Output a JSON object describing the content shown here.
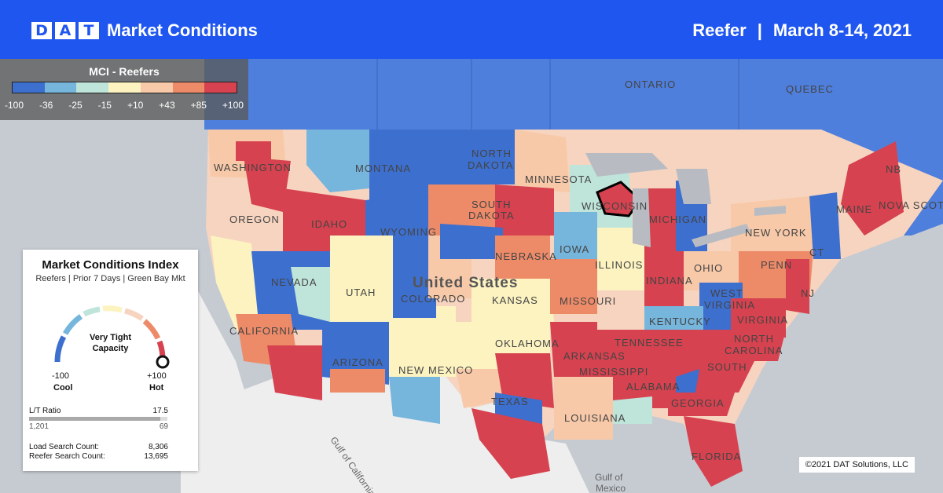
{
  "header": {
    "logo_letters": [
      "D",
      "A",
      "T"
    ],
    "title": "Market Conditions",
    "equipment": "Reefer",
    "separator": "|",
    "date_range": "March 8-14, 2021"
  },
  "legend": {
    "title": "MCI - Reefers",
    "ticks": [
      "-100",
      "-36",
      "-25",
      "-15",
      "+10",
      "+43",
      "+85",
      "+100"
    ],
    "colors": [
      "#3d6fcf",
      "#76b5dc",
      "#bfe4da",
      "#fcf3c1",
      "#f7c9a8",
      "#ed8b69",
      "#d6424f"
    ]
  },
  "card": {
    "title": "Market Conditions Index",
    "subtitle": "Reefers | Prior 7 Days | Green Bay Mkt",
    "gauge_text_line1": "Very Tight",
    "gauge_text_line2": "Capacity",
    "gauge_value": 100,
    "min_value": "-100",
    "max_value": "+100",
    "min_label": "Cool",
    "max_label": "Hot",
    "lt_label": "L/T Ratio",
    "lt_value": "17.5",
    "lt_loads": "1,201",
    "lt_trucks": "69",
    "load_search_label": "Load Search Count:",
    "load_search_value": "8,306",
    "reefer_search_label": "Reefer Search Count:",
    "reefer_search_value": "13,695"
  },
  "map_labels": {
    "ontario": "ONTARIO",
    "quebec": "QUEBEC",
    "nb": "NB",
    "nova_scotia": "NOVA SCOTIA",
    "washington": "WASHINGTON",
    "montana": "MONTANA",
    "north_dakota_1": "NORTH",
    "north_dakota_2": "DAKOTA",
    "minnesota": "MINNESOTA",
    "oregon": "OREGON",
    "idaho": "IDAHO",
    "south_dakota_1": "SOUTH",
    "south_dakota_2": "DAKOTA",
    "wyoming": "WYOMING",
    "wisconsin": "WISCONSIN",
    "michigan": "MICHIGAN",
    "maine": "MAINE",
    "new_york": "NEW YORK",
    "nebraska": "NEBRASKA",
    "iowa": "IOWA",
    "nevada": "NEVADA",
    "utah": "UTAH",
    "united_states": "United States",
    "colorado": "COLORADO",
    "kansas": "KANSAS",
    "illinois": "ILLINOIS",
    "indiana": "INDIANA",
    "ohio": "OHIO",
    "penn": "PENN",
    "nj": "NJ",
    "ct": "CT",
    "california": "CALIFORNIA",
    "missouri": "MISSOURI",
    "west_virginia_1": "WEST",
    "west_virginia_2": "VIRGINIA",
    "kentucky": "KENTUCKY",
    "virginia": "VIRGINIA",
    "oklahoma": "OKLAHOMA",
    "tennessee": "TENNESSEE",
    "north_carolina_1": "NORTH",
    "north_carolina_2": "CAROLINA",
    "arizona": "ARIZONA",
    "new_mexico": "NEW MEXICO",
    "arkansas": "ARKANSAS",
    "south_carolina": "SOUTH",
    "mississippi": "MISSISSIPPI",
    "alabama": "ALABAMA",
    "georgia": "GEORGIA",
    "texas": "TEXAS",
    "louisiana": "LOUISIANA",
    "florida": "FLORIDA",
    "gulf_california": "Gulf of California",
    "gulf_mexico_1": "Gulf of",
    "gulf_mexico_2": "Mexico"
  },
  "copyright": "©2021 DAT Solutions, LLC"
}
